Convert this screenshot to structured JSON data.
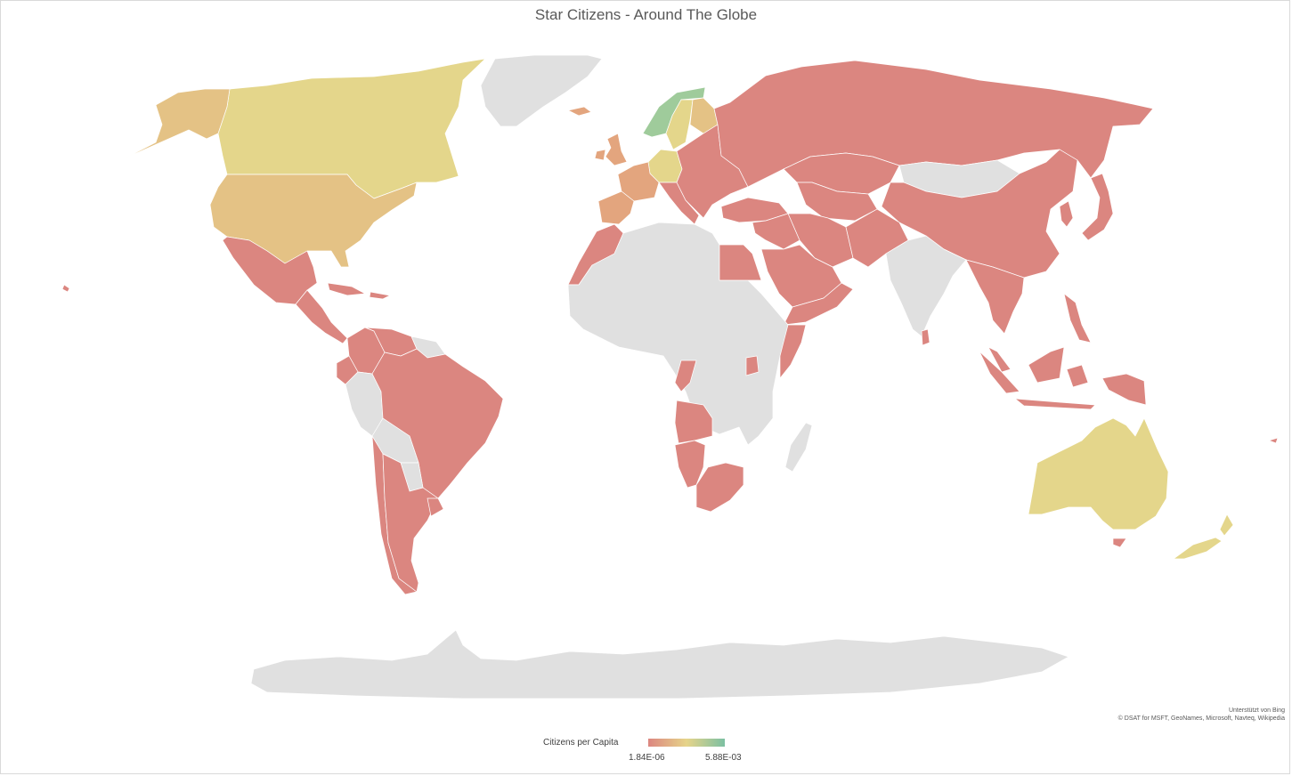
{
  "title": "Star Citizens - Around The Globe",
  "attribution": {
    "line1": "Unterstützt von Bing",
    "line2": "© DSAT for MSFT, GeoNames, Microsoft, Navteq, Wikipedia"
  },
  "legend": {
    "title": "Citizens per Capita",
    "min_label": "1.84E-06",
    "max_label": "5.88E-03",
    "gradient": [
      "#dc8680",
      "#e6d48a",
      "#7cc0a2"
    ]
  },
  "colors": {
    "no_data": "#e0e0e0",
    "low": "#db8680",
    "low_mid": "#e3a57e",
    "mid": "#e4c285",
    "mid_high": "#e4d68b",
    "high": "#9fcb9b"
  },
  "regions": [
    {
      "name": "Canada",
      "level": "mid_high"
    },
    {
      "name": "Alaska (USA)",
      "level": "mid"
    },
    {
      "name": "United States",
      "level": "mid"
    },
    {
      "name": "Greenland",
      "level": "no_data"
    },
    {
      "name": "Mexico",
      "level": "low"
    },
    {
      "name": "Central America",
      "level": "low"
    },
    {
      "name": "Colombia",
      "level": "low"
    },
    {
      "name": "Venezuela",
      "level": "low"
    },
    {
      "name": "Guianas",
      "level": "no_data"
    },
    {
      "name": "Ecuador",
      "level": "low"
    },
    {
      "name": "Peru",
      "level": "no_data"
    },
    {
      "name": "Bolivia",
      "level": "no_data"
    },
    {
      "name": "Brazil",
      "level": "low"
    },
    {
      "name": "Paraguay",
      "level": "no_data"
    },
    {
      "name": "Chile",
      "level": "low"
    },
    {
      "name": "Argentina",
      "level": "low"
    },
    {
      "name": "Uruguay",
      "level": "low"
    },
    {
      "name": "Iceland",
      "level": "low_mid"
    },
    {
      "name": "United Kingdom",
      "level": "low_mid"
    },
    {
      "name": "Norway",
      "level": "high"
    },
    {
      "name": "Sweden",
      "level": "mid_high"
    },
    {
      "name": "Finland",
      "level": "mid"
    },
    {
      "name": "Germany",
      "level": "mid_high"
    },
    {
      "name": "France",
      "level": "low_mid"
    },
    {
      "name": "Spain",
      "level": "low_mid"
    },
    {
      "name": "Italy",
      "level": "low"
    },
    {
      "name": "Eastern Europe",
      "level": "low"
    },
    {
      "name": "Russia",
      "level": "low"
    },
    {
      "name": "Kazakhstan",
      "level": "low"
    },
    {
      "name": "Mongolia",
      "level": "no_data"
    },
    {
      "name": "China",
      "level": "low"
    },
    {
      "name": "Japan",
      "level": "low"
    },
    {
      "name": "Korea",
      "level": "low"
    },
    {
      "name": "Turkey",
      "level": "low"
    },
    {
      "name": "Iran",
      "level": "low"
    },
    {
      "name": "Saudi Arabia",
      "level": "low"
    },
    {
      "name": "Egypt",
      "level": "low"
    },
    {
      "name": "Morocco",
      "level": "low"
    },
    {
      "name": "North and Central Africa",
      "level": "no_data"
    },
    {
      "name": "Somalia",
      "level": "low"
    },
    {
      "name": "Angola",
      "level": "low"
    },
    {
      "name": "Namibia",
      "level": "low"
    },
    {
      "name": "South Africa",
      "level": "low"
    },
    {
      "name": "Madagascar",
      "level": "no_data"
    },
    {
      "name": "India",
      "level": "no_data"
    },
    {
      "name": "Southeast Asia",
      "level": "low"
    },
    {
      "name": "Indonesia",
      "level": "low"
    },
    {
      "name": "Philippines",
      "level": "low"
    },
    {
      "name": "Australia",
      "level": "mid_high"
    },
    {
      "name": "New Zealand",
      "level": "mid_high"
    },
    {
      "name": "Antarctica",
      "level": "no_data"
    }
  ]
}
